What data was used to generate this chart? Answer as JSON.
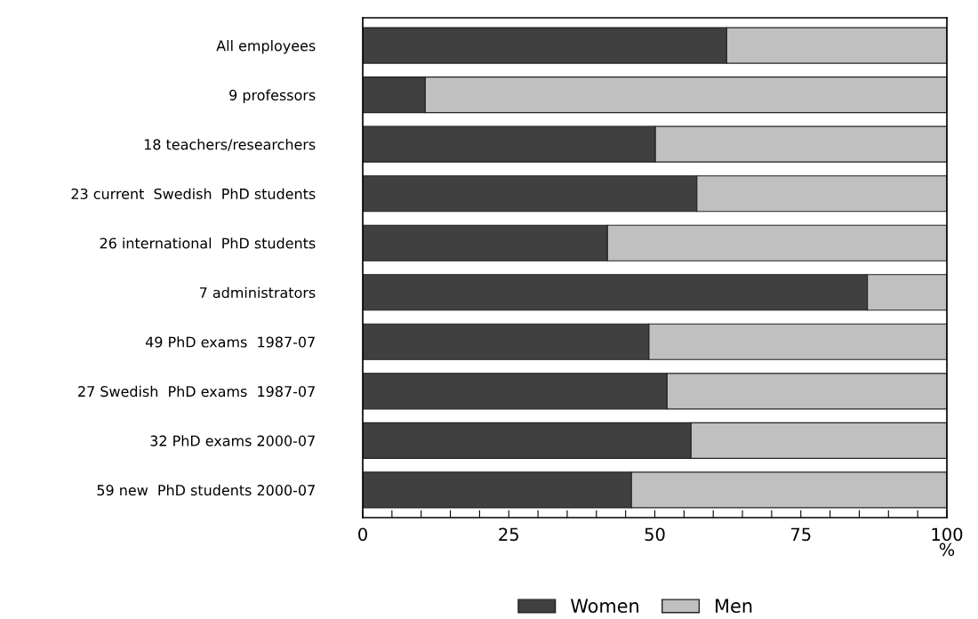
{
  "chart_data": {
    "type": "bar",
    "orientation": "horizontal",
    "stacked": true,
    "xlabel": "%",
    "categories": [
      "All employees",
      "9 professors",
      "18 teachers/researchers",
      "23 current  Swedish  PhD students",
      "26 international  PhD students",
      "7 administrators",
      "49 PhD exams  1987-07",
      "27 Swedish  PhD exams  1987-07",
      "32 PhD exams 2000-07",
      "59 new  PhD students 2000-07"
    ],
    "series": [
      {
        "name": "Women",
        "color": "#404040",
        "values": [
          62.3,
          10.7,
          50.1,
          57.2,
          41.9,
          86.4,
          49.0,
          52.1,
          56.2,
          46.0
        ]
      },
      {
        "name": "Men",
        "color": "#c0c0c0",
        "values": [
          37.7,
          89.3,
          49.9,
          42.8,
          58.1,
          13.6,
          51.0,
          47.9,
          43.8,
          54.0
        ]
      }
    ],
    "xlim": [
      0,
      100
    ],
    "xticks": [
      0,
      {
        "value": 5,
        "label": null
      },
      {
        "value": 10,
        "label": null
      },
      {
        "value": 15,
        "label": null
      },
      {
        "value": 20,
        "label": null
      },
      25,
      {
        "value": 30,
        "label": null
      },
      {
        "value": 35,
        "label": null
      },
      {
        "value": 40,
        "label": null
      },
      {
        "value": 45,
        "label": null
      },
      50,
      {
        "value": 55,
        "label": null
      },
      {
        "value": 60,
        "label": null
      },
      {
        "value": 65,
        "label": null
      },
      {
        "value": 70,
        "label": null
      },
      75,
      {
        "value": 80,
        "label": null
      },
      {
        "value": 85,
        "label": null
      },
      {
        "value": 90,
        "label": null
      },
      {
        "value": 95,
        "label": null
      },
      100
    ],
    "grid": false,
    "legend": "bottom"
  }
}
